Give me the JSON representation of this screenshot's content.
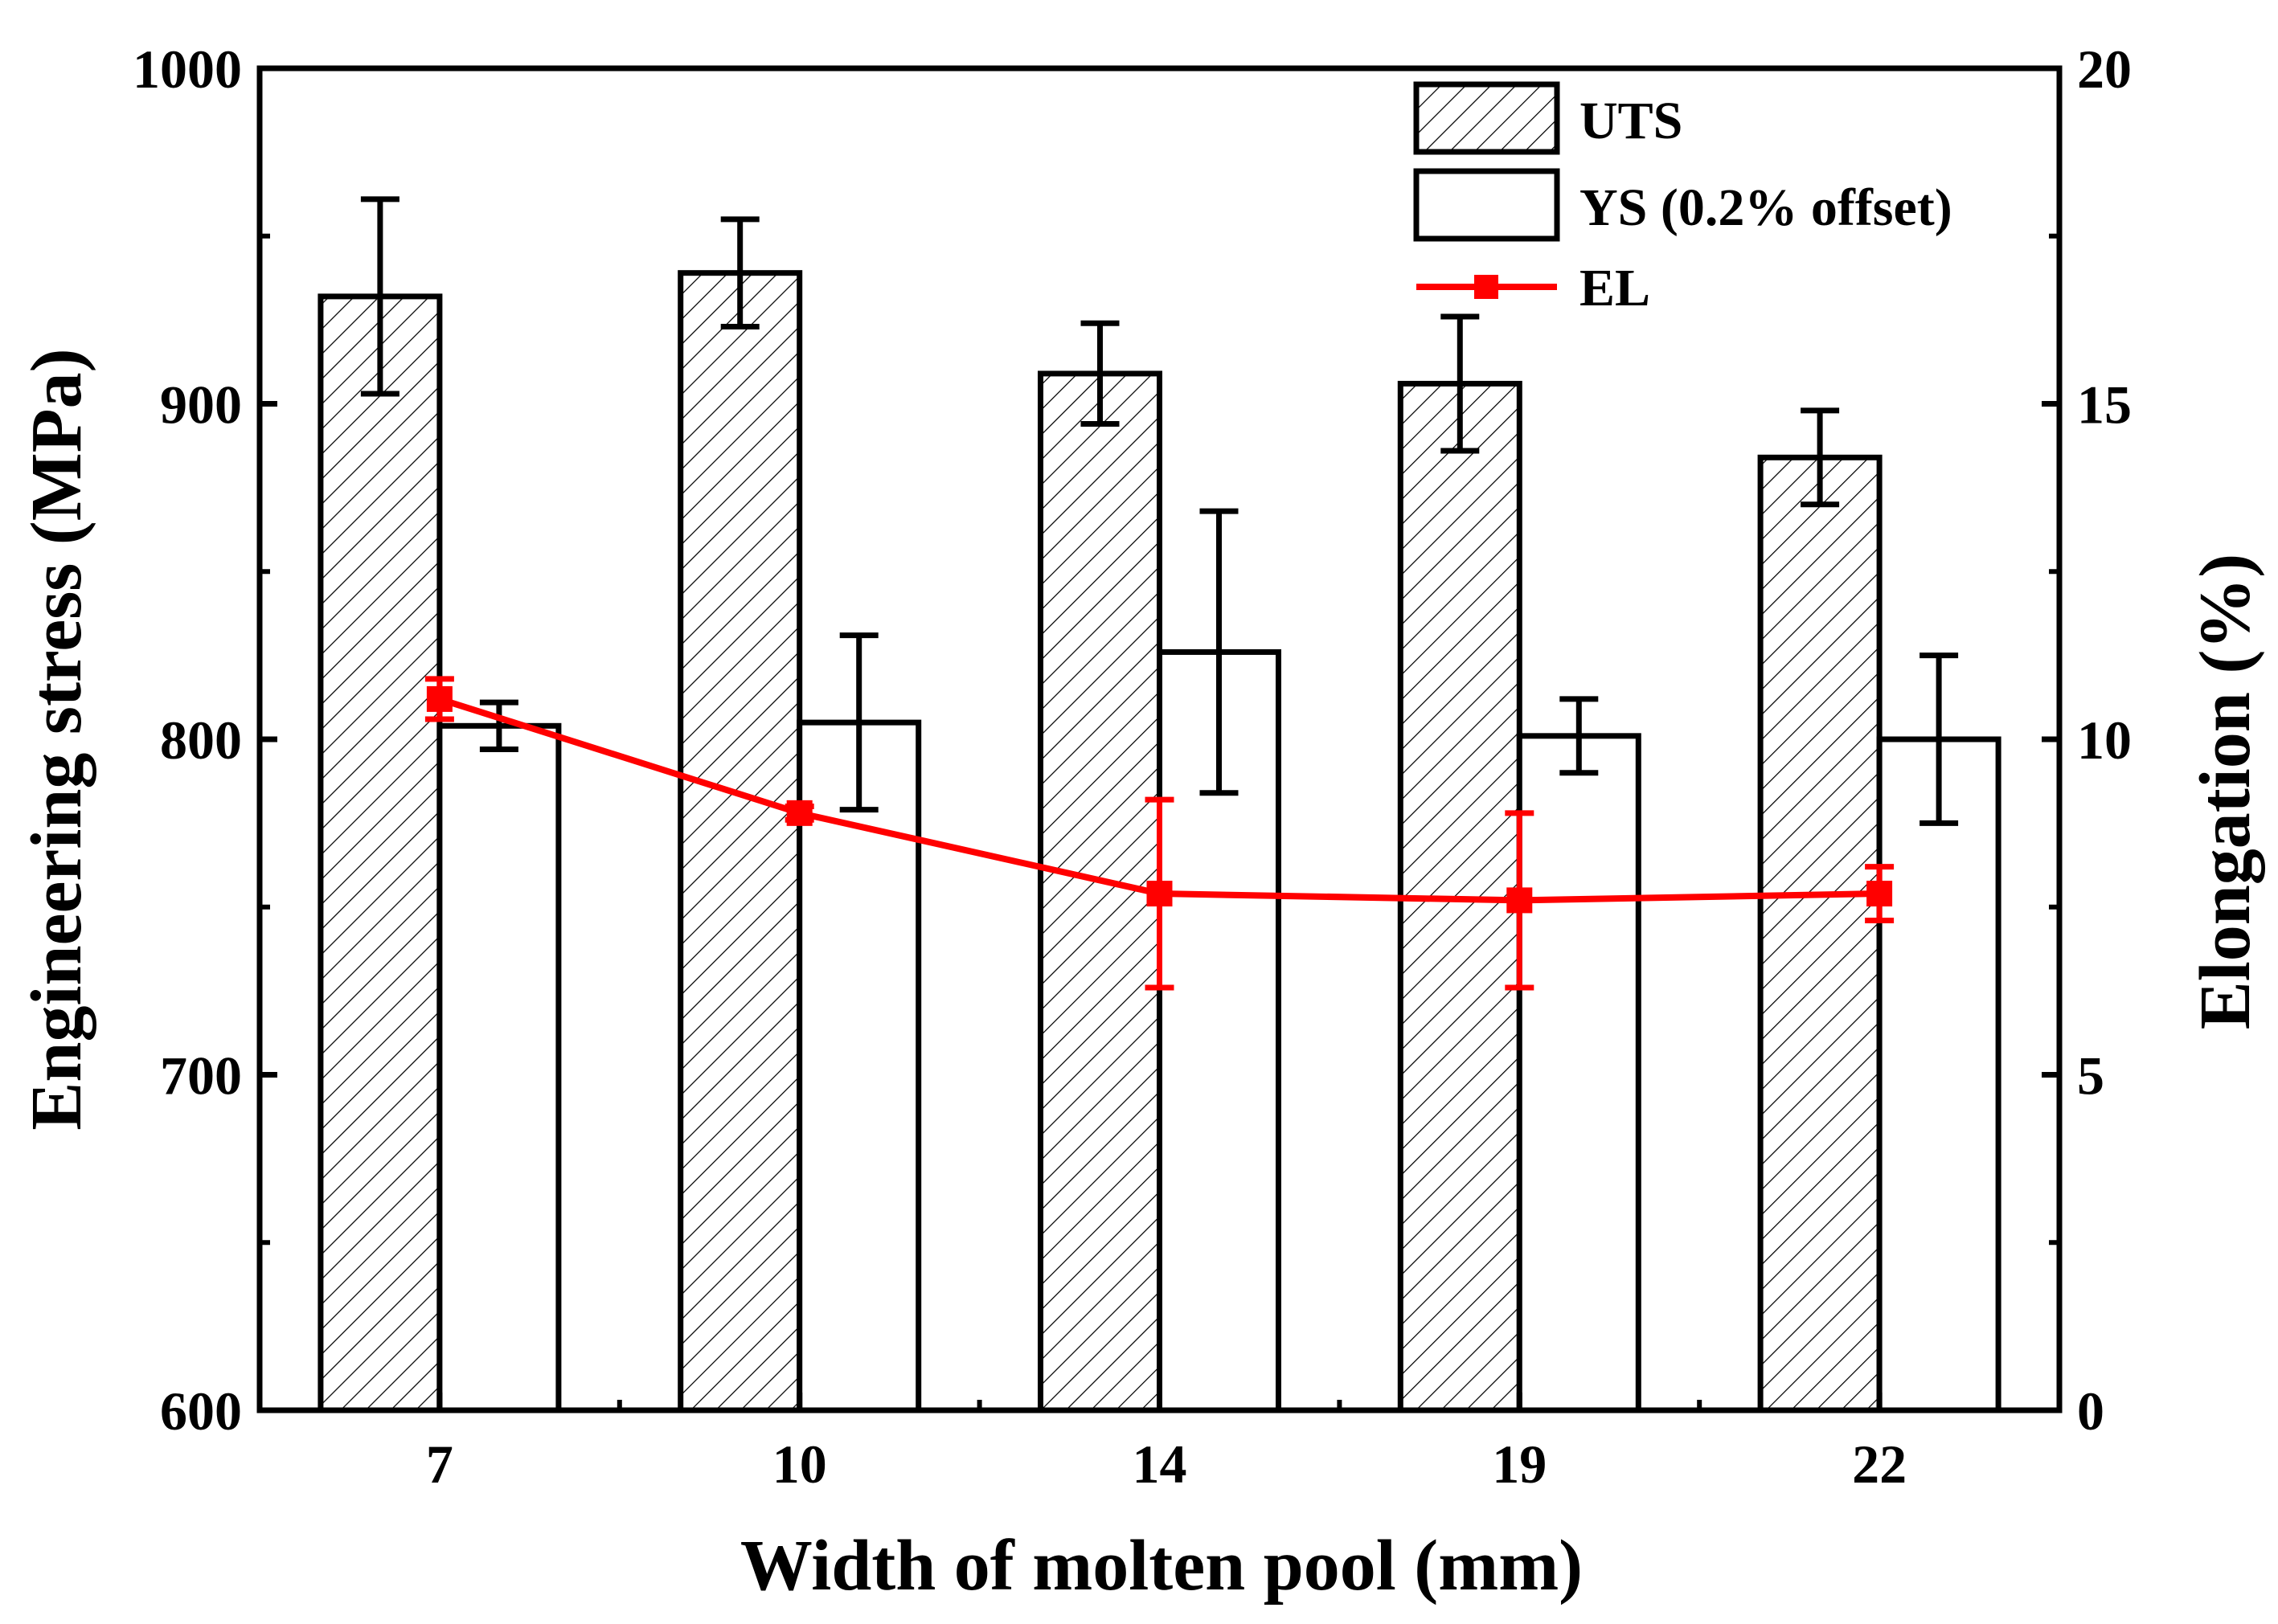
{
  "chart_data": {
    "type": "bar",
    "title": "",
    "xlabel": "Width of molten pool (mm)",
    "ylabel": "Engineering stress (MPa)",
    "y2label": "Elongation (%)",
    "categories": [
      "7",
      "10",
      "14",
      "19",
      "22"
    ],
    "ylim": [
      600,
      1000
    ],
    "y_ticks": [
      "600",
      "700",
      "800",
      "900",
      "1000"
    ],
    "y2lim": [
      0,
      20
    ],
    "y2_ticks": [
      "0",
      "5",
      "10",
      "15",
      "20"
    ],
    "grid": false,
    "legend_position": "top-right",
    "series": [
      {
        "name": "UTS",
        "type": "bar",
        "axis": "left",
        "pattern": "hatched",
        "values": [
          932,
          939,
          909,
          906,
          884
        ],
        "errors": [
          29,
          16,
          15,
          20,
          14
        ]
      },
      {
        "name": "YS (0.2% offset)",
        "type": "bar",
        "axis": "left",
        "pattern": "open",
        "values": [
          804,
          805,
          826,
          801,
          800
        ],
        "errors": [
          7,
          26,
          42,
          11,
          25
        ]
      },
      {
        "name": "EL",
        "type": "line",
        "axis": "right",
        "color": "#ff0000",
        "marker": "square",
        "values": [
          10.6,
          8.9,
          7.7,
          7.6,
          7.7
        ],
        "errors": [
          0.3,
          0.1,
          1.4,
          1.3,
          0.4
        ]
      }
    ]
  }
}
